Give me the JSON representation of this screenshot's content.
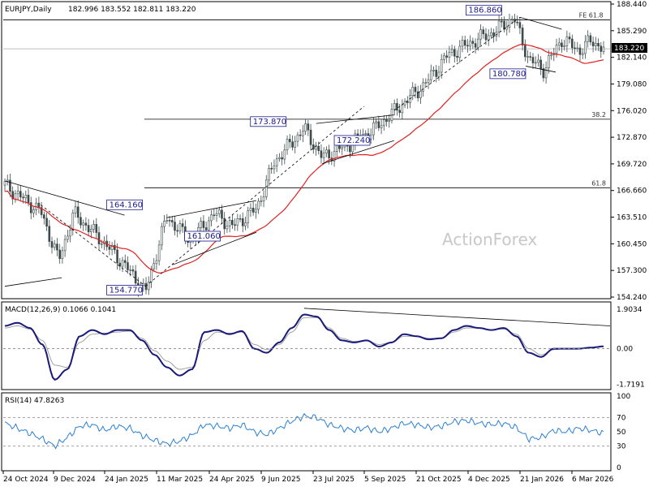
{
  "chart_data": [
    {
      "type": "candlestick",
      "header": {
        "symbol": "EURJPY,Daily",
        "ohlc": "182.996 183.552 182.811 183.220"
      },
      "watermark": "ActionForex",
      "current_price": "183.220",
      "ylim": [
        154.24,
        188.44
      ],
      "y_ticks": [
        "188.440",
        "185.290",
        "182.140",
        "179.080",
        "176.020",
        "172.870",
        "169.720",
        "166.660",
        "163.510",
        "160.450",
        "157.300",
        "154.240"
      ],
      "x_ticks": [
        "24 Oct 2024",
        "9 Dec 2024",
        "24 Jan 2025",
        "11 Mar 2025",
        "24 Apr 2025",
        "9 Jun 2025",
        "23 Jul 2025",
        "5 Sep 2025",
        "21 Oct 2025",
        "4 Dec 2025",
        "21 Jan 2026",
        "6 Mar 2026"
      ],
      "swing_labels": [
        {
          "text": "154.770",
          "value": 154.77
        },
        {
          "text": "164.160",
          "value": 164.16
        },
        {
          "text": "161.060",
          "value": 161.06
        },
        {
          "text": "173.870",
          "value": 173.87
        },
        {
          "text": "172.240",
          "value": 172.24
        },
        {
          "text": "186.860",
          "value": 186.86
        },
        {
          "text": "180.780",
          "value": 180.78
        }
      ],
      "levels": [
        {
          "label": "FE 61.8",
          "value": 186.6
        },
        {
          "label": "38.2",
          "value": 175.0
        },
        {
          "label": "61.8",
          "value": 167.0
        }
      ],
      "moving_average": true,
      "grid": false
    },
    {
      "type": "line",
      "title": "MACD(12,26,9) 0.1066 0.1041",
      "y_ticks": [
        "1.9034",
        "0.00",
        "-1.7191"
      ],
      "ylim": [
        -1.9,
        2.1
      ],
      "current_value": "0.00",
      "series": [
        {
          "name": "MACD",
          "values": [
            1.1,
            1.25,
            1.0,
            0.2,
            -1.5,
            -1.0,
            0.6,
            0.9,
            0.7,
            0.9,
            0.9,
            0.4,
            -0.3,
            -0.9,
            -1.3,
            -1.0,
            0.8,
            0.9,
            0.7,
            0.85,
            0.0,
            -0.2,
            0.3,
            1.0,
            1.65,
            1.55,
            0.9,
            0.4,
            0.3,
            0.4,
            0.1,
            0.3,
            0.7,
            0.6,
            0.45,
            0.5,
            0.9,
            1.1,
            1.0,
            0.9,
            1.0,
            0.6,
            -0.2,
            -0.4,
            0.0,
            0.0,
            0.0,
            0.05,
            0.11
          ]
        },
        {
          "name": "Signal",
          "values": [
            1.0,
            1.1,
            0.95,
            0.4,
            -0.8,
            -0.9,
            0.3,
            0.7,
            0.75,
            0.8,
            0.85,
            0.5,
            -0.1,
            -0.6,
            -1.0,
            -0.9,
            0.4,
            0.8,
            0.75,
            0.8,
            0.2,
            -0.05,
            0.2,
            0.8,
            1.5,
            1.5,
            1.0,
            0.5,
            0.35,
            0.4,
            0.2,
            0.3,
            0.6,
            0.6,
            0.5,
            0.5,
            0.8,
            1.0,
            1.0,
            0.9,
            0.95,
            0.7,
            0.0,
            -0.3,
            -0.05,
            0.0,
            0.0,
            0.05,
            0.1
          ]
        }
      ]
    },
    {
      "type": "line",
      "title": "RSI(14) 47.8263",
      "y_ticks": [
        "100",
        "70",
        "50",
        "30",
        "0"
      ],
      "ylim": [
        0,
        100
      ],
      "series": [
        {
          "name": "RSI",
          "values": [
            62,
            55,
            48,
            40,
            30,
            42,
            58,
            60,
            52,
            58,
            55,
            45,
            38,
            33,
            37,
            45,
            60,
            58,
            55,
            60,
            50,
            46,
            55,
            65,
            72,
            70,
            60,
            55,
            52,
            56,
            50,
            55,
            62,
            60,
            56,
            58,
            64,
            66,
            62,
            60,
            62,
            56,
            40,
            42,
            52,
            50,
            55,
            52,
            48
          ]
        }
      ]
    }
  ]
}
